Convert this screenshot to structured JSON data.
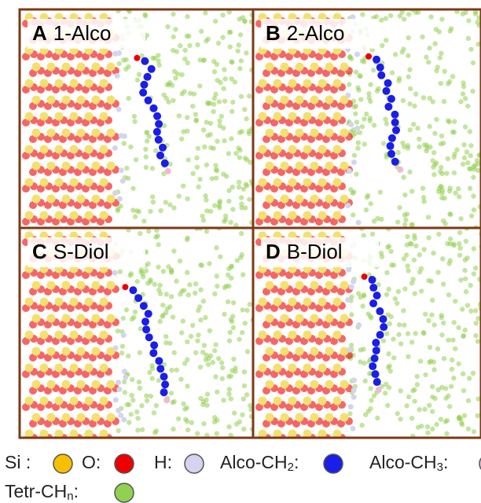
{
  "panels": [
    {
      "letter": "A",
      "name": "1-Alco"
    },
    {
      "letter": "B",
      "name": "2-Alco"
    },
    {
      "letter": "C",
      "name": "S-Diol"
    },
    {
      "letter": "D",
      "name": "B-Diol"
    }
  ],
  "legend": [
    {
      "label": "Si :",
      "color": "#f6bf00"
    },
    {
      "label": "O:",
      "color": "#ee0000"
    },
    {
      "label": "H:",
      "color": "#d4d4ee"
    },
    {
      "label": "Alco-CH",
      "sub": "2",
      "sep": ":",
      "color": "#1a1ee6"
    },
    {
      "label": "Alco-CH",
      "sub": "3",
      "sep": ":",
      "color": "#f2b8d6"
    },
    {
      "label": "Tetr-CH",
      "sub": "n",
      "sep": ":",
      "color": "#92d050"
    }
  ]
}
